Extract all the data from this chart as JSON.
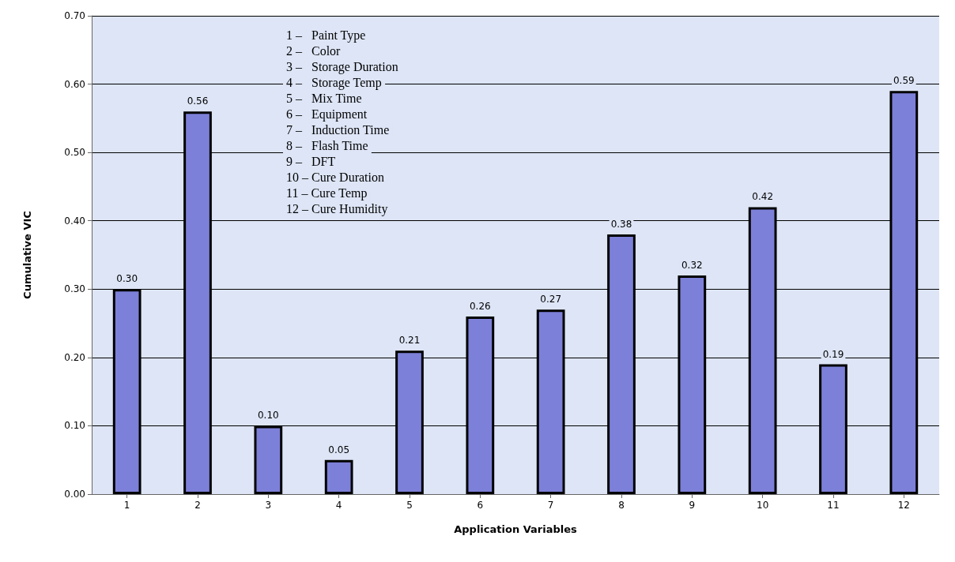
{
  "chart_data": {
    "type": "bar",
    "ylabel": "Cumulative VIC",
    "xlabel": "Application Variables",
    "categories": [
      "1",
      "2",
      "3",
      "4",
      "5",
      "6",
      "7",
      "8",
      "9",
      "10",
      "11",
      "12"
    ],
    "values": [
      0.3,
      0.56,
      0.1,
      0.05,
      0.21,
      0.26,
      0.27,
      0.38,
      0.32,
      0.42,
      0.19,
      0.59
    ],
    "value_labels": [
      "0.30",
      "0.56",
      "0.10",
      "0.05",
      "0.21",
      "0.26",
      "0.27",
      "0.38",
      "0.32",
      "0.42",
      "0.19",
      "0.59"
    ],
    "color": "#7d80d8",
    "ylim": [
      0,
      0.7
    ],
    "yticks": [
      {
        "value": 0,
        "label": "0.00"
      },
      {
        "value": 0.1,
        "label": "0.10"
      },
      {
        "value": 0.2,
        "label": "0.20"
      },
      {
        "value": 0.3,
        "label": "0.30"
      },
      {
        "value": 0.4,
        "label": "0.40"
      },
      {
        "value": 0.5,
        "label": "0.50"
      },
      {
        "value": 0.6,
        "label": "0.60"
      },
      {
        "value": 0.7,
        "label": "0.70"
      }
    ],
    "grid": "y",
    "annotations": [
      "1 –   Paint Type",
      "2 –   Color",
      "3 –   Storage Duration",
      "4 –   Storage Temp",
      "5 –   Mix Time",
      "6 –   Equipment",
      "7 –   Induction Time",
      "8 –   Flash Time",
      "9 –   DFT",
      "10 – Cure Duration",
      "11 – Cure Temp",
      "12 – Cure Humidity"
    ]
  }
}
